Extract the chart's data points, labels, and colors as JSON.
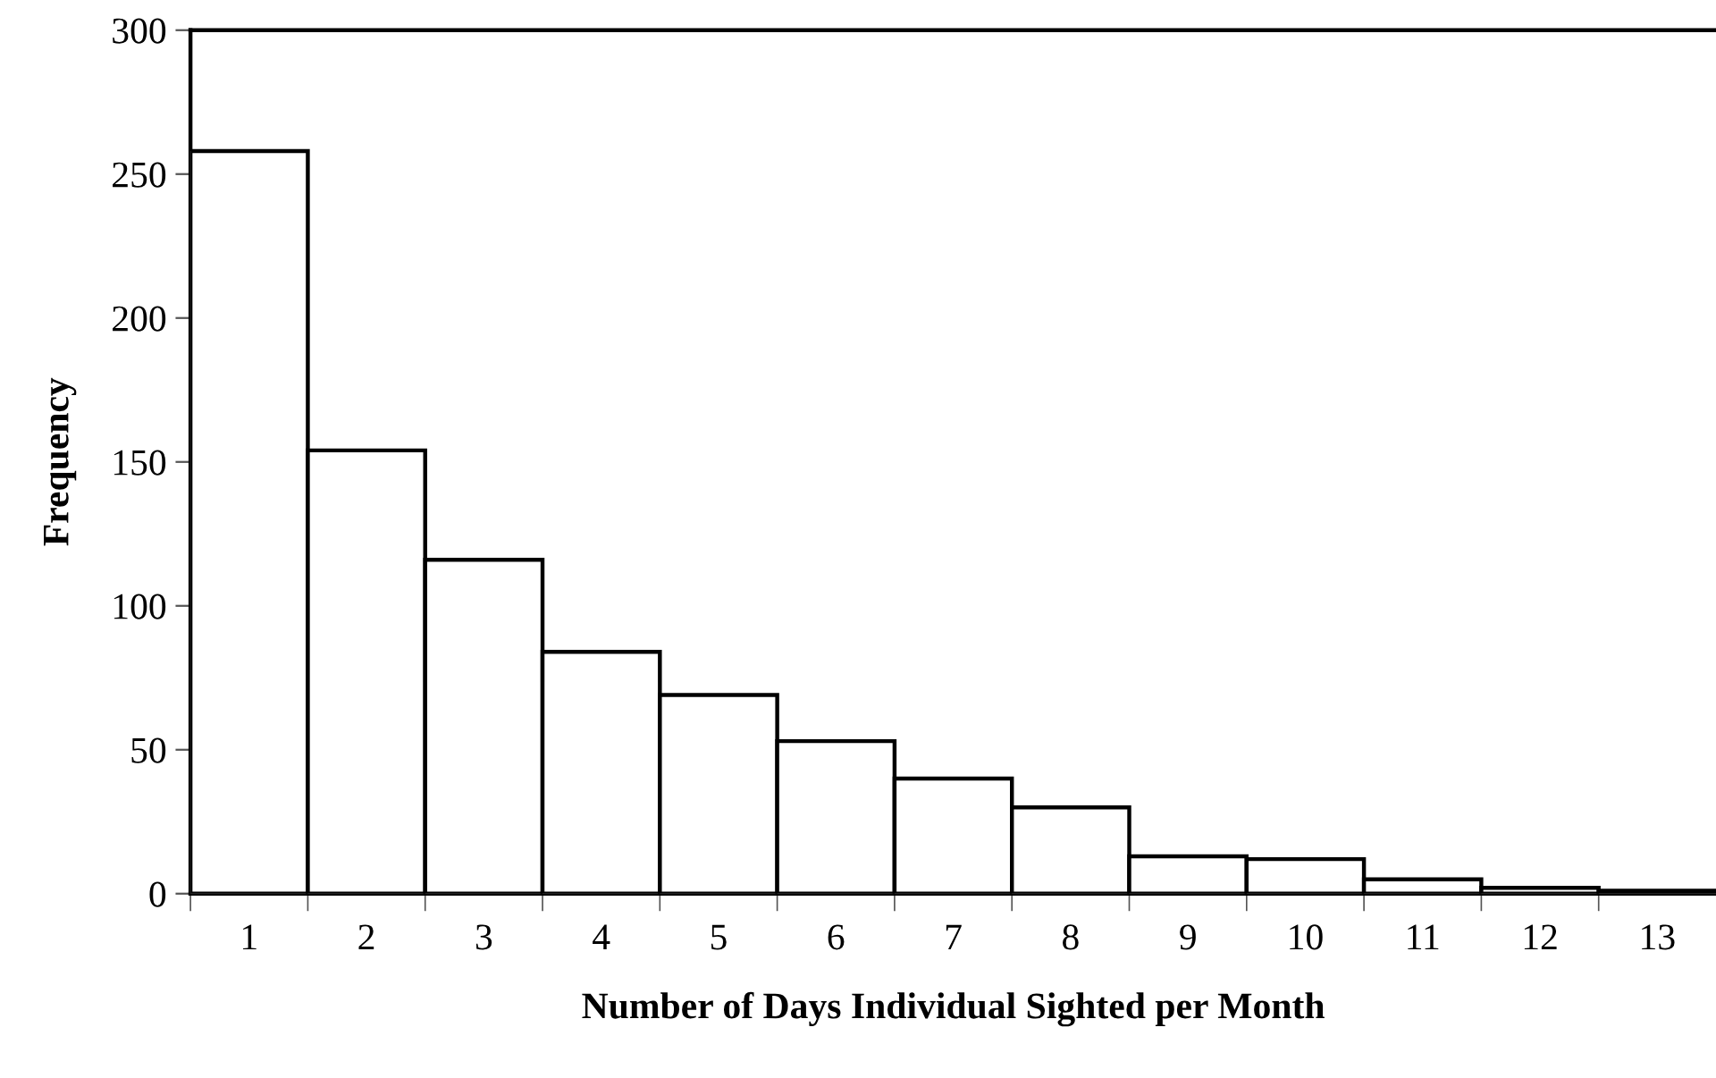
{
  "chart_data": {
    "type": "bar",
    "xlabel": "Number of Days Individual Sighted per Month",
    "ylabel": "Frequency",
    "categories": [
      "1",
      "2",
      "3",
      "4",
      "5",
      "6",
      "7",
      "8",
      "9",
      "10",
      "11",
      "12",
      "13"
    ],
    "values": [
      258,
      154,
      116,
      84,
      69,
      53,
      40,
      30,
      13,
      12,
      5,
      2,
      1
    ],
    "color": "#ffffff",
    "ylim": [
      0,
      300
    ],
    "yticks": [
      0,
      50,
      100,
      150,
      200,
      250,
      300
    ]
  }
}
